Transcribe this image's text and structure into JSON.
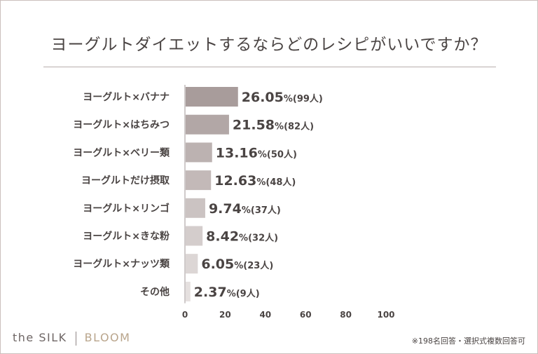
{
  "chart_data": {
    "type": "bar",
    "orientation": "horizontal",
    "title": "ヨーグルトダイエットするならどのレシピがいいですか？",
    "categories": [
      "ヨーグルト×バナナ",
      "ヨーグルト×はちみつ",
      "ヨーグルト×ベリー類",
      "ヨーグルトだけ摂取",
      "ヨーグルト×リンゴ",
      "ヨーグルト×きな粉",
      "ヨーグルト×ナッツ類",
      "その他"
    ],
    "values": [
      26.05,
      21.58,
      13.16,
      12.63,
      9.74,
      8.42,
      6.05,
      2.37
    ],
    "value_labels": [
      "26.05",
      "21.58",
      "13.16",
      "12.63",
      "9.74",
      "8.42",
      "6.05",
      "2.37"
    ],
    "count_labels": [
      "(99人)",
      "(82人)",
      "(50人)",
      "(48人)",
      "(37人)",
      "(32人)",
      "(23人)",
      "(9人)"
    ],
    "percent_sign": "%",
    "bar_colors": [
      "#a89c9b",
      "#b2a7a6",
      "#bcb2b1",
      "#c3b9b8",
      "#cbc3c2",
      "#d4cdcc",
      "#dcd6d5",
      "#e5e0df"
    ],
    "xlim": [
      0,
      100
    ],
    "xticks": [
      "0",
      "20",
      "40",
      "60",
      "80",
      "100"
    ],
    "tick_values": [
      0,
      20,
      40,
      60,
      80,
      100
    ],
    "xlabel": "",
    "ylabel": ""
  },
  "footer": {
    "brand_left": "the SILK",
    "brand_right": "BLOOM",
    "note": "※198名回答・選択式複数回答可"
  }
}
